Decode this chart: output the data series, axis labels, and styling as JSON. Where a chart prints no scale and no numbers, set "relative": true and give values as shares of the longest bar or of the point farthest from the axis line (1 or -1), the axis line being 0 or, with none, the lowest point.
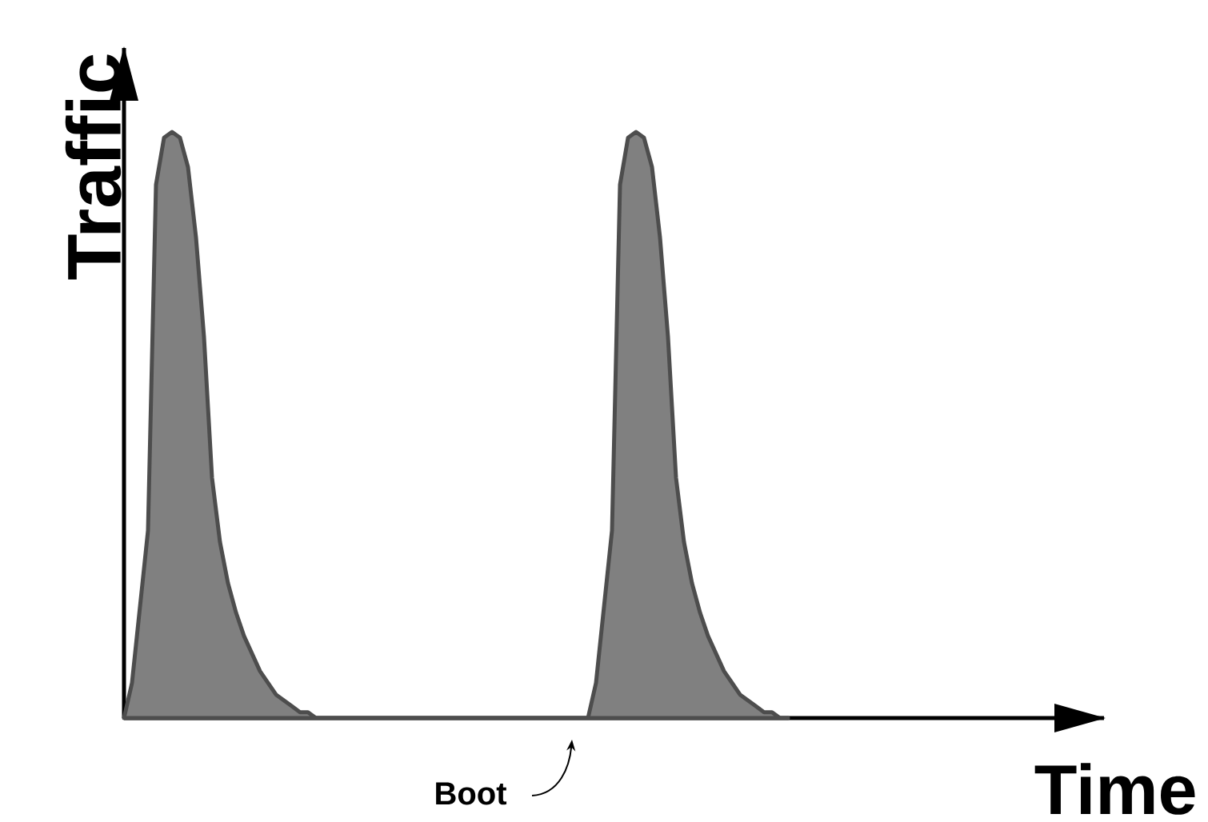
{
  "chart_data": {
    "type": "area",
    "relative": true,
    "xlabel": "Time",
    "ylabel": "Traffic",
    "annotations": [
      "Boot"
    ],
    "color": "#808080",
    "categories": [
      null,
      null,
      null,
      null,
      null,
      null,
      null,
      null,
      null,
      null,
      null,
      null,
      null,
      null,
      null,
      null,
      null,
      null,
      null,
      null,
      null,
      null,
      null,
      null,
      null,
      null,
      null,
      null,
      null,
      null,
      null,
      null,
      null,
      null,
      null,
      null,
      null,
      null,
      null,
      null,
      null,
      null,
      null,
      null,
      null,
      null,
      null,
      null,
      null,
      null,
      null,
      null,
      null,
      null,
      null,
      null,
      null,
      null,
      null,
      null,
      null,
      null,
      null,
      null,
      null,
      null,
      null,
      null,
      null,
      null,
      null,
      null,
      null,
      null,
      null,
      null,
      null,
      null,
      null,
      null,
      null,
      null,
      null,
      null,
      null,
      null,
      null,
      null,
      null,
      null,
      null,
      null,
      null,
      null,
      null,
      null,
      null,
      null,
      null,
      null,
      null,
      null,
      null,
      null,
      null,
      null,
      null,
      null,
      null,
      null,
      null,
      null,
      null,
      null,
      null,
      null,
      null,
      null,
      null,
      null,
      null,
      null,
      null
    ],
    "values": [
      0,
      0.06,
      0.19,
      0.32,
      0.91,
      0.99,
      1,
      0.99,
      0.94,
      0.82,
      0.65,
      0.41,
      0.3,
      0.23,
      0.18,
      0.14,
      0.11,
      0.08,
      0.06,
      0.04,
      0.03,
      0.02,
      0.01,
      0.01,
      0,
      0,
      0,
      0,
      0,
      0,
      0,
      0,
      0,
      0,
      0,
      0,
      0,
      0,
      0,
      0,
      0,
      0,
      0,
      0,
      0,
      0,
      0,
      0,
      0,
      0,
      0,
      0,
      0,
      0,
      0,
      0,
      0,
      0,
      0,
      0.06,
      0.19,
      0.32,
      0.91,
      0.99,
      1,
      0.99,
      0.94,
      0.82,
      0.65,
      0.41,
      0.3,
      0.23,
      0.18,
      0.14,
      0.11,
      0.08,
      0.06,
      0.04,
      0.03,
      0.02,
      0.01,
      0.01,
      0,
      0,
      null,
      null,
      null,
      null,
      null,
      null,
      null,
      null,
      null,
      null,
      null,
      null,
      null,
      null,
      null,
      null,
      null,
      null,
      null,
      null,
      null,
      null,
      null,
      null,
      null,
      null,
      null,
      null,
      null,
      null,
      null,
      null,
      null,
      null,
      null,
      null,
      null,
      null,
      null
    ]
  }
}
